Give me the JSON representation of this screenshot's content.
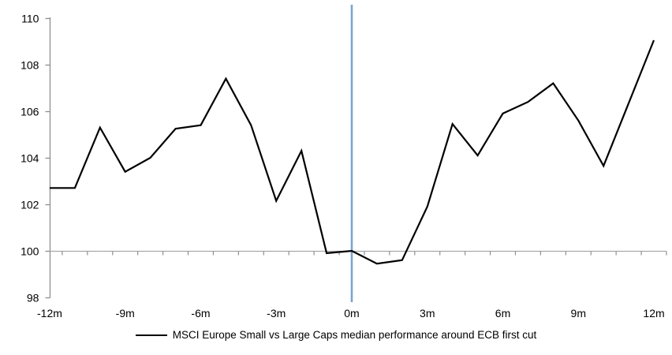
{
  "chart_data": {
    "type": "line",
    "title": "",
    "xlabel": "",
    "ylabel": "",
    "x_months": [
      -12,
      -11,
      -10,
      -9,
      -8,
      -7,
      -6,
      -5,
      -4,
      -3,
      -2,
      -1,
      0,
      1,
      2,
      3,
      4,
      5,
      6,
      7,
      8,
      9,
      10,
      11,
      12
    ],
    "series": [
      {
        "name": "MSCI Europe Small vs Large Caps median performance around ECB first cut",
        "values": [
          102.7,
          102.7,
          105.3,
          103.4,
          104.0,
          105.25,
          105.4,
          107.4,
          105.4,
          102.15,
          104.3,
          99.9,
          100.0,
          99.45,
          99.6,
          101.9,
          105.45,
          104.1,
          105.9,
          106.4,
          107.2,
          105.6,
          103.65,
          106.35,
          109.05
        ],
        "color": "#000000"
      }
    ],
    "ylim": [
      98,
      110
    ],
    "yticks": [
      98,
      100,
      102,
      104,
      106,
      108,
      110
    ],
    "xtick_label_months": [
      -12,
      -9,
      -6,
      -3,
      0,
      3,
      6,
      9,
      12
    ],
    "xtick_labels": [
      "-12m",
      "-9m",
      "-6m",
      "-3m",
      "0m",
      "3m",
      "6m",
      "9m",
      "12m"
    ],
    "event_line_month": 0,
    "grid": "baseline-at-100-only",
    "legend_position": "bottom-center",
    "colors": {
      "series_line": "#000000",
      "event_line": "#7aa6ce",
      "axis_line": "#8f8f8f",
      "baseline_100": "#a9a9a9",
      "tick": "#8f8f8f",
      "text": "#000000",
      "background": "#ffffff"
    }
  },
  "legend": {
    "label": "MSCI Europe Small vs Large Caps median performance around ECB first cut"
  }
}
